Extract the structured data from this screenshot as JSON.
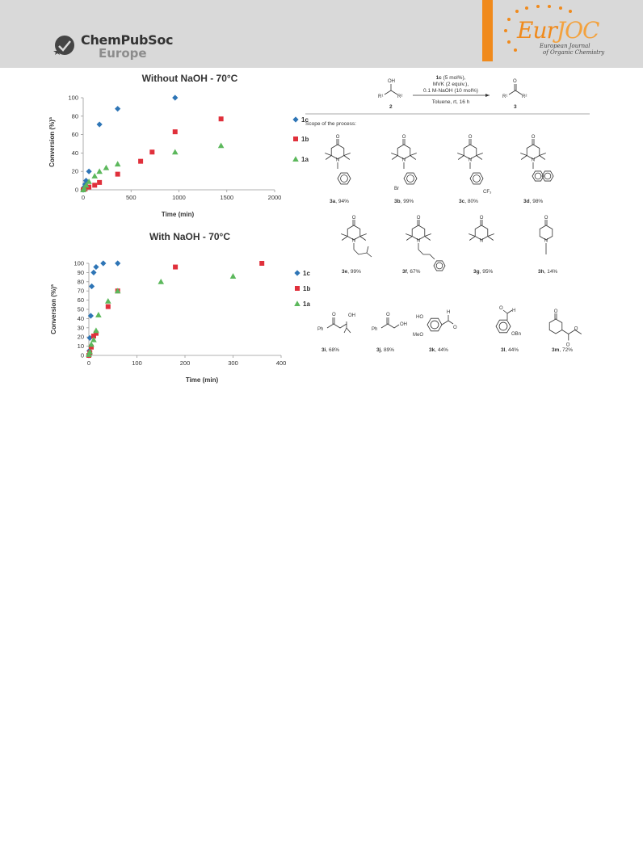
{
  "header": {
    "publisher_name": "ChemPubSoc",
    "publisher_sub": "Europe",
    "journal_name_a": "Eur",
    "journal_name_b": "JOC",
    "journal_line1": "European Journal",
    "journal_line2": "of Organic Chemistry",
    "colors": {
      "header_bg": "#d9d9d9",
      "accent": "#f08a1c"
    }
  },
  "chart_data": [
    {
      "type": "scatter",
      "title": "Without NaOH - 70°C",
      "xlabel": "Time (min)",
      "ylabel": "Conversion (%)ª",
      "xlim": [
        0,
        2000
      ],
      "ylim": [
        0,
        100
      ],
      "xticks": [
        "0",
        "500",
        "1000",
        "1500",
        "2000"
      ],
      "yticks": [
        "0",
        "20",
        "40",
        "60",
        "80",
        "100"
      ],
      "legend": "right",
      "series": [
        {
          "name": "1c",
          "color": "#2e75b6",
          "marker": "diamond",
          "points": [
            [
              0,
              0
            ],
            [
              10,
              3
            ],
            [
              20,
              6
            ],
            [
              30,
              10
            ],
            [
              60,
              20
            ],
            [
              170,
              71
            ],
            [
              360,
              88
            ],
            [
              960,
              100
            ]
          ]
        },
        {
          "name": "1b",
          "color": "#e0303b",
          "marker": "square",
          "points": [
            [
              0,
              0
            ],
            [
              20,
              1
            ],
            [
              60,
              3
            ],
            [
              120,
              5
            ],
            [
              170,
              8
            ],
            [
              360,
              17
            ],
            [
              600,
              31
            ],
            [
              720,
              41
            ],
            [
              960,
              63
            ],
            [
              1440,
              77
            ]
          ]
        },
        {
          "name": "1a",
          "color": "#5cb85c",
          "marker": "triangle",
          "points": [
            [
              0,
              0
            ],
            [
              10,
              2
            ],
            [
              30,
              5
            ],
            [
              60,
              9
            ],
            [
              120,
              15
            ],
            [
              170,
              20
            ],
            [
              240,
              24
            ],
            [
              360,
              28
            ],
            [
              960,
              41
            ],
            [
              1440,
              48
            ]
          ]
        }
      ]
    },
    {
      "type": "scatter",
      "title": "With NaOH - 70°C",
      "xlabel": "Time (min)",
      "ylabel": "Conversion (%)ª",
      "xlim": [
        0,
        400
      ],
      "ylim": [
        0,
        100
      ],
      "xticks": [
        "0",
        "100",
        "200",
        "300",
        "400"
      ],
      "yticks": [
        "0",
        "10",
        "20",
        "30",
        "40",
        "50",
        "60",
        "70",
        "80",
        "90",
        "100"
      ],
      "legend": "right",
      "series": [
        {
          "name": "1c",
          "color": "#2e75b6",
          "marker": "diamond",
          "points": [
            [
              0,
              0
            ],
            [
              1,
              5
            ],
            [
              2,
              19
            ],
            [
              4,
              43
            ],
            [
              6,
              75
            ],
            [
              10,
              90
            ],
            [
              15,
              96
            ],
            [
              30,
              100
            ],
            [
              60,
              100
            ]
          ]
        },
        {
          "name": "1b",
          "color": "#e0303b",
          "marker": "square",
          "points": [
            [
              0,
              0
            ],
            [
              2,
              3
            ],
            [
              5,
              9
            ],
            [
              10,
              21
            ],
            [
              15,
              24
            ],
            [
              40,
              53
            ],
            [
              60,
              70
            ],
            [
              180,
              96
            ],
            [
              360,
              100
            ]
          ]
        },
        {
          "name": "1a",
          "color": "#5cb85c",
          "marker": "triangle",
          "points": [
            [
              0,
              1
            ],
            [
              2,
              4
            ],
            [
              5,
              12
            ],
            [
              10,
              17
            ],
            [
              15,
              27
            ],
            [
              20,
              44
            ],
            [
              40,
              59
            ],
            [
              60,
              70
            ],
            [
              150,
              80
            ],
            [
              300,
              86
            ]
          ]
        }
      ]
    }
  ],
  "scheme": {
    "reagent_line1_bold": "1c",
    "reagent_line1": " (5 mol%),",
    "reagent_line2": "MVK (2 equiv.),",
    "reagent_line3": "0.1 M-NaOH (10 mol%)",
    "conditions": "Toluene, rt, 16 h",
    "substrate_number": "2",
    "product_number": "3",
    "scope_heading": "Scope of the process:",
    "atoms": {
      "OH": "OH",
      "O": "O",
      "R1": "R¹",
      "R2": "R²",
      "N": "N",
      "Br": "Br",
      "CF3": "CF₃",
      "H": "H",
      "MeO": "MeO",
      "HO": "HO",
      "OBn": "OBn",
      "Ph": "Ph"
    },
    "products": [
      {
        "id": "3a",
        "yield": ", 94%"
      },
      {
        "id": "3b",
        "yield": ", 99%"
      },
      {
        "id": "3c",
        "yield": ", 80%"
      },
      {
        "id": "3d",
        "yield": ", 98%"
      },
      {
        "id": "3e",
        "yield": ", 99%"
      },
      {
        "id": "3f",
        "yield": ", 67%"
      },
      {
        "id": "3g",
        "yield": ", 95%"
      },
      {
        "id": "3h",
        "yield": ", 14%"
      },
      {
        "id": "3i",
        "yield": ", 68%"
      },
      {
        "id": "3j",
        "yield": ", 89%"
      },
      {
        "id": "3k",
        "yield": ", 44%"
      },
      {
        "id": "3l",
        "yield": ", 44%"
      },
      {
        "id": "3m",
        "yield": ", 72%"
      }
    ]
  }
}
